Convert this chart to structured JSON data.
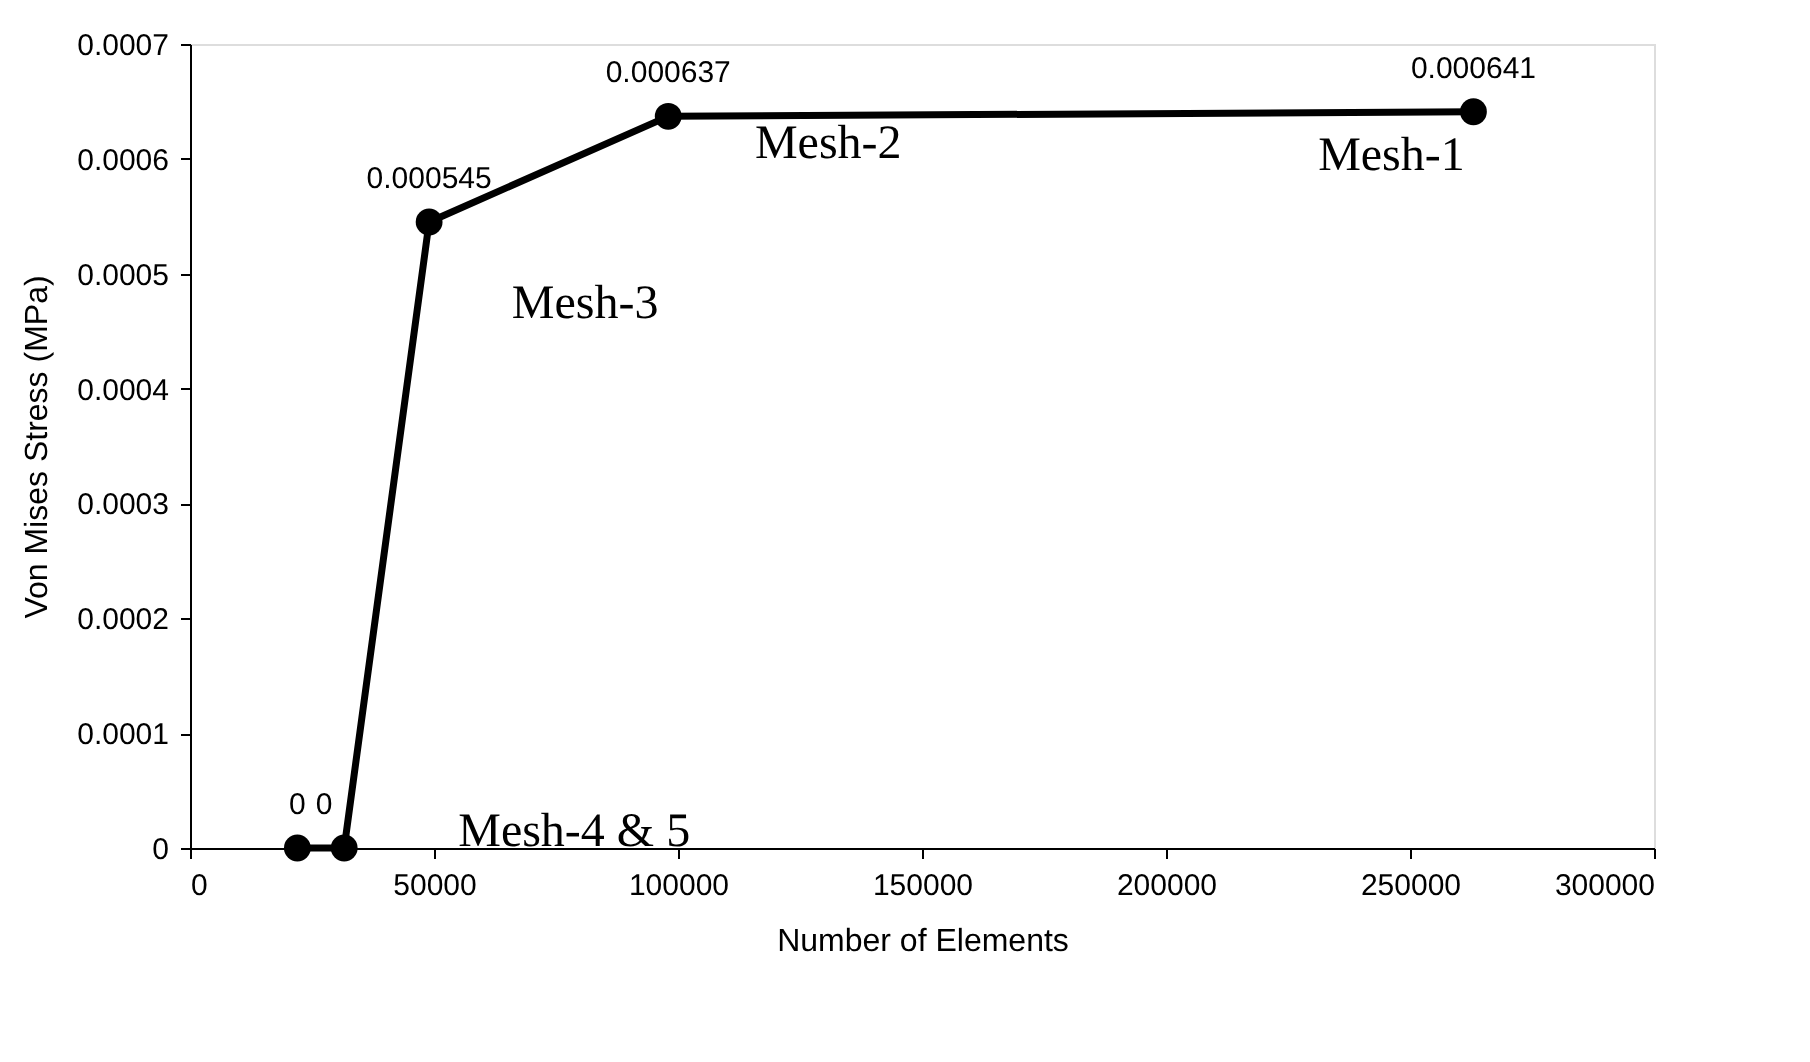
{
  "chart_data": {
    "type": "line",
    "xlabel": "Number of Elements",
    "ylabel": "Von Mises Stress (MPa)",
    "x": [
      22000,
      31600,
      49000,
      98000,
      263000
    ],
    "series": [
      {
        "color": "#000000",
        "values": [
          0,
          0,
          0.000545,
          0.000637,
          0.000641
        ]
      }
    ],
    "xlim": [
      0,
      300000
    ],
    "xticks": [
      0,
      50000,
      100000,
      150000,
      200000,
      250000,
      300000
    ],
    "ylim": [
      0,
      0.0007
    ],
    "yticks": [
      0,
      0.0001,
      0.0002,
      0.0003,
      0.0004,
      0.0005,
      0.0006,
      0.0007
    ],
    "marker": "circle",
    "line_style": "solid",
    "grid": false,
    "data_labels": true,
    "annotations": [
      {
        "text": "Mesh-1",
        "x": 263000,
        "y": 0.000641
      },
      {
        "text": "Mesh-2",
        "x": 98000,
        "y": 0.000637
      },
      {
        "text": "Mesh-3",
        "x": 49000,
        "y": 0.000545
      },
      {
        "text": "Mesh-4 & 5",
        "x": 31600,
        "y": 0
      }
    ]
  }
}
